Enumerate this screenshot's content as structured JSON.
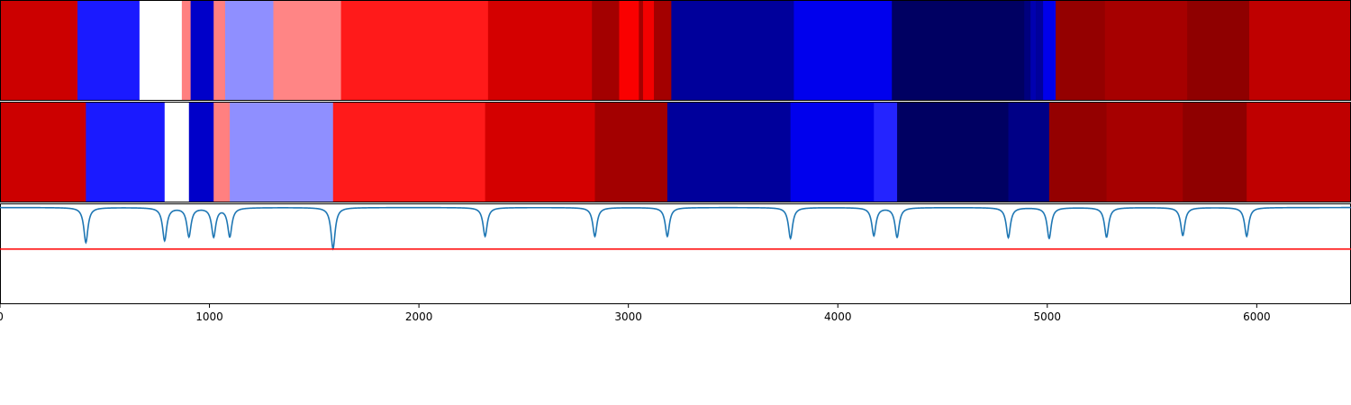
{
  "chart_data": {
    "type": "heatmap",
    "title": "",
    "xlabel": "",
    "ylabel": "",
    "xlim": [
      0,
      6450
    ],
    "x_ticks": [
      0,
      1000,
      2000,
      3000,
      4000,
      5000,
      6000
    ],
    "x_tick_labels": [
      "0",
      "1000",
      "2000",
      "3000",
      "4000",
      "5000",
      "6000"
    ],
    "colormap": "seismic",
    "color_range": [
      -1,
      1
    ],
    "panels": [
      {
        "name": "",
        "segments": [
          {
            "start": 0,
            "end": 370,
            "value": 0.7
          },
          {
            "start": 370,
            "end": 666,
            "value": -0.45
          },
          {
            "start": 666,
            "end": 868,
            "value": 0.0
          },
          {
            "start": 868,
            "end": 910,
            "value": 0.25
          },
          {
            "start": 910,
            "end": 1020,
            "value": -0.65
          },
          {
            "start": 1020,
            "end": 1075,
            "value": 0.25
          },
          {
            "start": 1075,
            "end": 1305,
            "value": -0.22
          },
          {
            "start": 1305,
            "end": 1628,
            "value": 0.24
          },
          {
            "start": 1628,
            "end": 2330,
            "value": 0.45
          },
          {
            "start": 2330,
            "end": 2826,
            "value": 0.67
          },
          {
            "start": 2826,
            "end": 2956,
            "value": 0.86
          },
          {
            "start": 2956,
            "end": 3050,
            "value": 0.52
          },
          {
            "start": 3050,
            "end": 3070,
            "value": 0.86
          },
          {
            "start": 3070,
            "end": 3122,
            "value": 0.55
          },
          {
            "start": 3122,
            "end": 3205,
            "value": 0.86
          },
          {
            "start": 3205,
            "end": 3790,
            "value": -0.78
          },
          {
            "start": 3790,
            "end": 4258,
            "value": -0.55
          },
          {
            "start": 4258,
            "end": 4890,
            "value": -0.94
          },
          {
            "start": 4890,
            "end": 4920,
            "value": -0.86
          },
          {
            "start": 4920,
            "end": 4945,
            "value": -0.72
          },
          {
            "start": 4945,
            "end": 4980,
            "value": -0.78
          },
          {
            "start": 4980,
            "end": 5040,
            "value": -0.56
          },
          {
            "start": 5040,
            "end": 5275,
            "value": 0.92
          },
          {
            "start": 5275,
            "end": 5668,
            "value": 0.85
          },
          {
            "start": 5668,
            "end": 5964,
            "value": 0.94
          },
          {
            "start": 5964,
            "end": 6450,
            "value": 0.75
          }
        ]
      },
      {
        "name": "",
        "segments": [
          {
            "start": 0,
            "end": 410,
            "value": 0.7
          },
          {
            "start": 410,
            "end": 786,
            "value": -0.45
          },
          {
            "start": 786,
            "end": 902,
            "value": 0.0
          },
          {
            "start": 902,
            "end": 1020,
            "value": -0.65
          },
          {
            "start": 1020,
            "end": 1097,
            "value": 0.25
          },
          {
            "start": 1097,
            "end": 1590,
            "value": -0.22
          },
          {
            "start": 1590,
            "end": 2316,
            "value": 0.45
          },
          {
            "start": 2316,
            "end": 2840,
            "value": 0.67
          },
          {
            "start": 2840,
            "end": 3186,
            "value": 0.86
          },
          {
            "start": 3186,
            "end": 3774,
            "value": -0.78
          },
          {
            "start": 3774,
            "end": 4172,
            "value": -0.55
          },
          {
            "start": 4172,
            "end": 4283,
            "value": -0.43
          },
          {
            "start": 4283,
            "end": 4814,
            "value": -0.94
          },
          {
            "start": 4814,
            "end": 5009,
            "value": -0.84
          },
          {
            "start": 5009,
            "end": 5283,
            "value": 0.92
          },
          {
            "start": 5283,
            "end": 5647,
            "value": 0.85
          },
          {
            "start": 5647,
            "end": 5952,
            "value": 0.94
          },
          {
            "start": 5952,
            "end": 6450,
            "value": 0.75
          }
        ]
      }
    ],
    "line_panel": {
      "series": [
        {
          "color": "#1f77b4",
          "baseline": 0,
          "dips": [
            {
              "x": 410,
              "depth": 0.85
            },
            {
              "x": 786,
              "depth": 0.8
            },
            {
              "x": 902,
              "depth": 0.7
            },
            {
              "x": 1020,
              "depth": 0.7
            },
            {
              "x": 1097,
              "depth": 0.7
            },
            {
              "x": 1590,
              "depth": 1.0
            },
            {
              "x": 2316,
              "depth": 0.7
            },
            {
              "x": 2840,
              "depth": 0.7
            },
            {
              "x": 3186,
              "depth": 0.7
            },
            {
              "x": 3774,
              "depth": 0.75
            },
            {
              "x": 4172,
              "depth": 0.68
            },
            {
              "x": 4283,
              "depth": 0.72
            },
            {
              "x": 4814,
              "depth": 0.73
            },
            {
              "x": 5009,
              "depth": 0.75
            },
            {
              "x": 5283,
              "depth": 0.72
            },
            {
              "x": 5647,
              "depth": 0.68
            },
            {
              "x": 5952,
              "depth": 0.7
            }
          ]
        }
      ],
      "threshold": {
        "value": 1.0,
        "color": "#ff0000"
      }
    }
  }
}
